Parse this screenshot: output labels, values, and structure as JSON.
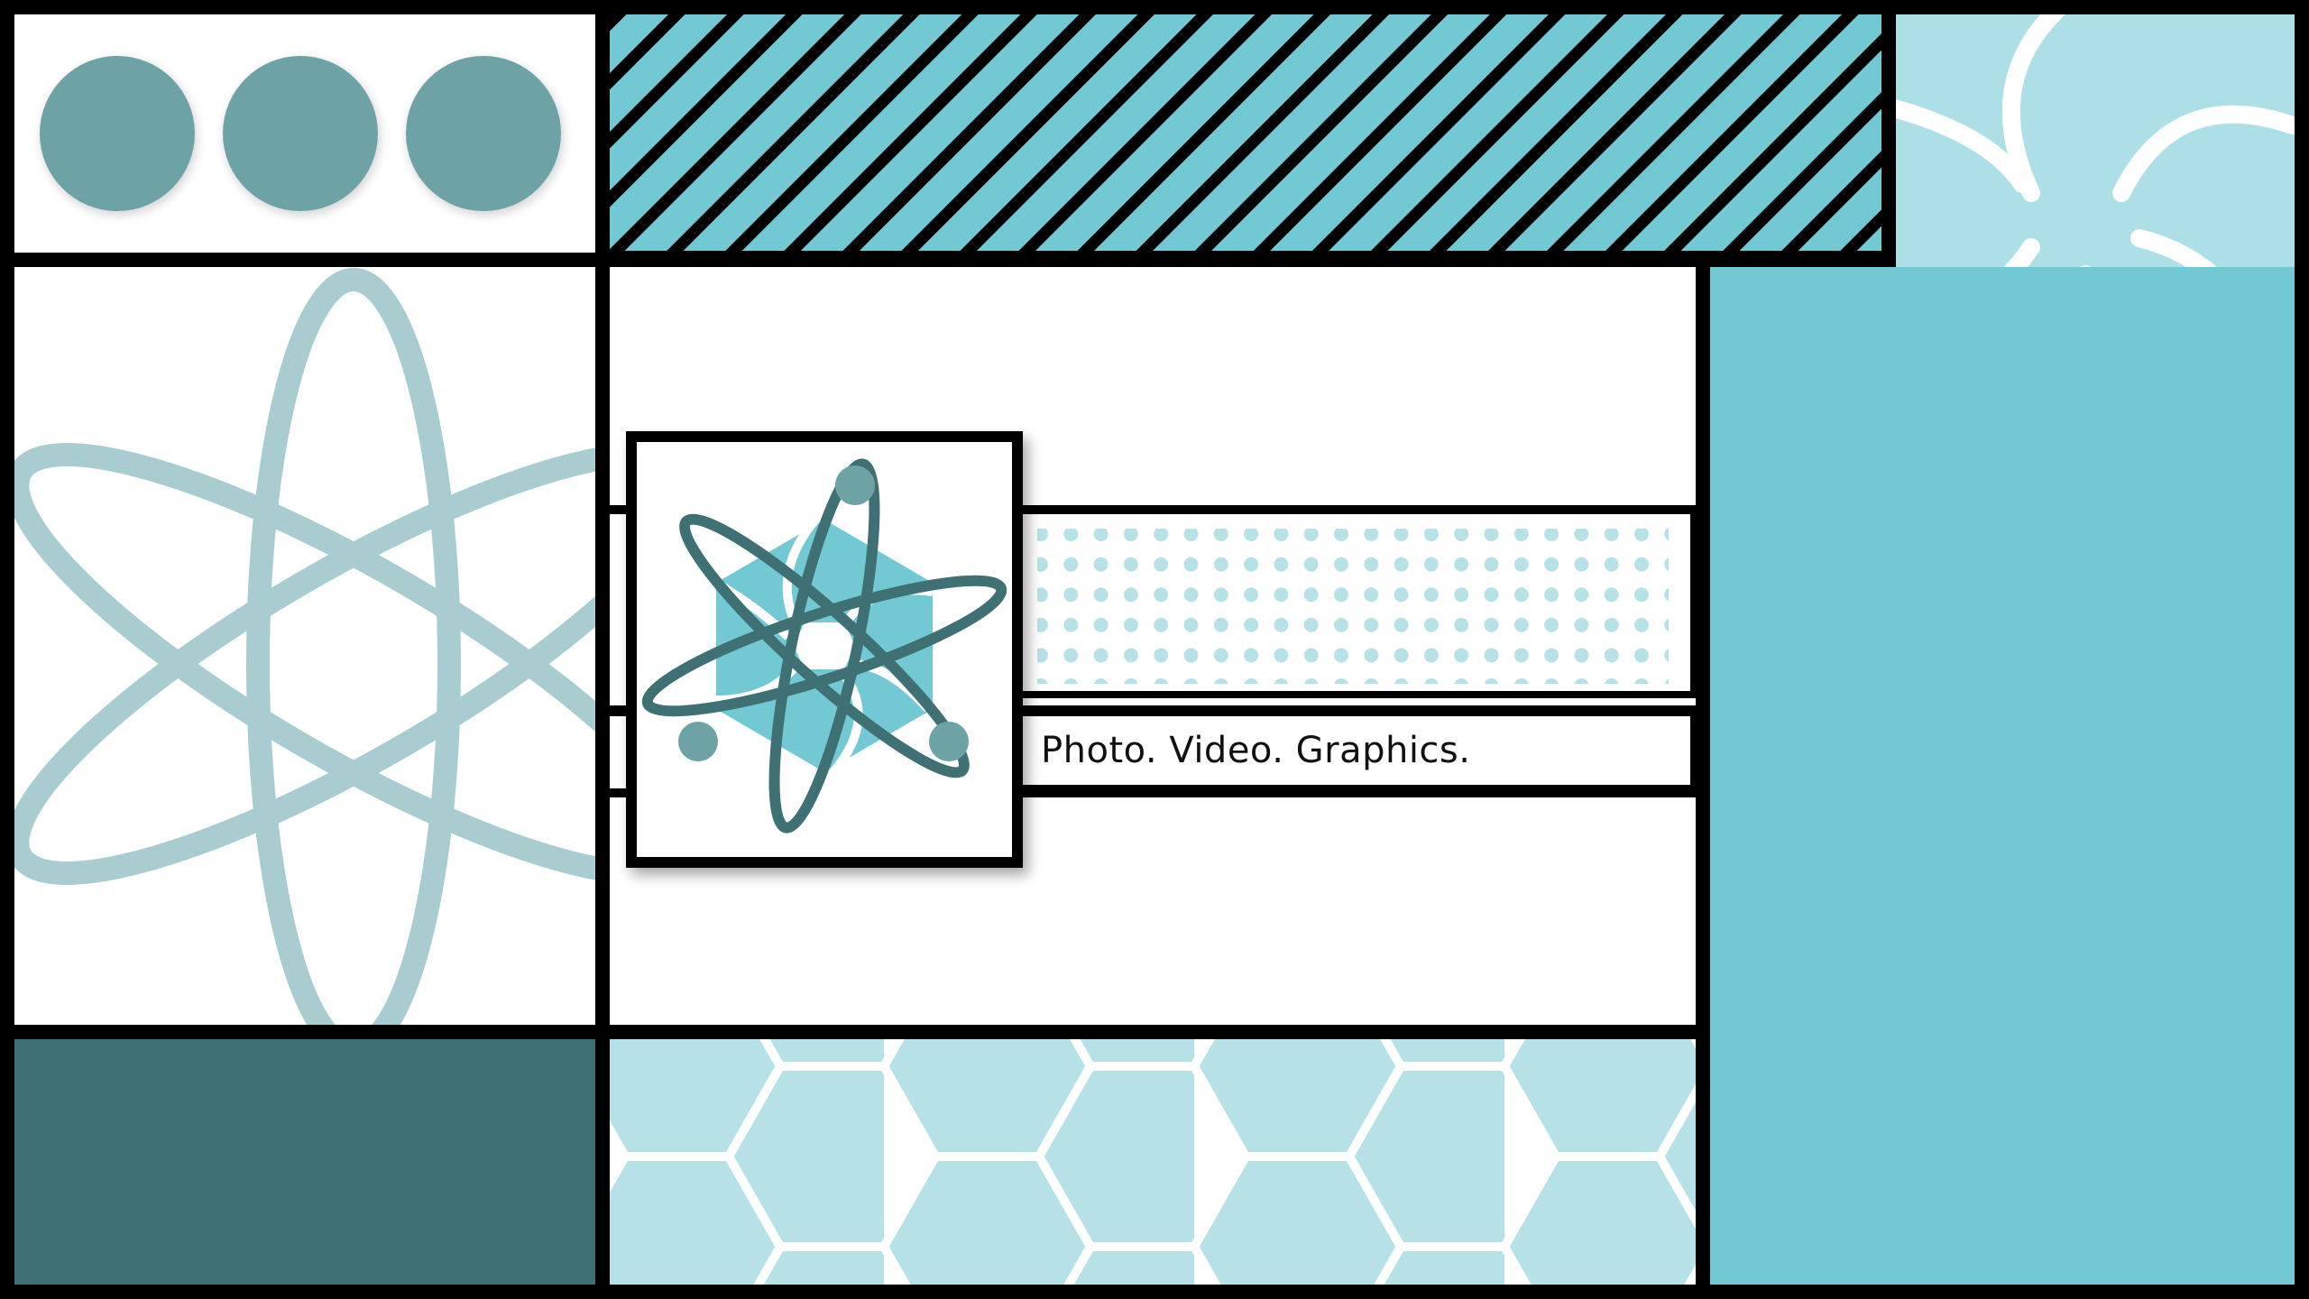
{
  "banner": {
    "tagline": "Photo. Video. Graphics.",
    "colors": {
      "frame": "#000000",
      "white": "#ffffff",
      "teal_dark": "#3f7073",
      "teal_mid": "#6ea3a6",
      "teal_soft": "#a8ccd0",
      "cyan": "#72c9d3",
      "cyan_light": "#b6e2e7",
      "cyan_pale": "#ade0e6"
    },
    "icons": [
      "circles-row-icon",
      "diagonal-stripes-pattern",
      "aperture-icon",
      "atom-icon",
      "logo-icon",
      "dot-pattern",
      "hexagon-pattern"
    ]
  }
}
